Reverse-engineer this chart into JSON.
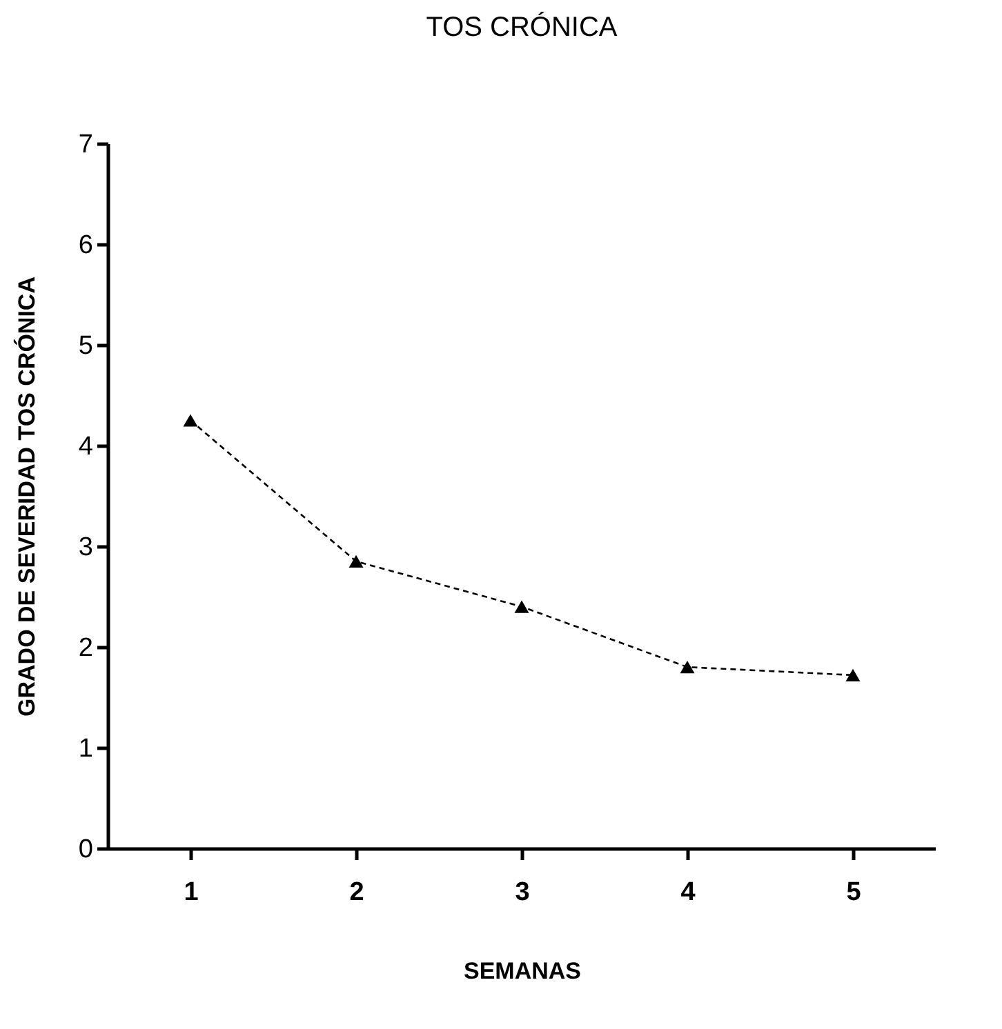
{
  "chart_data": {
    "type": "line",
    "title": "TOS CRÓNICA",
    "xlabel": "SEMANAS",
    "ylabel": "GRADO DE SEVERIDAD TOS CRÓNICA",
    "categories": [
      "1",
      "2",
      "3",
      "4",
      "5"
    ],
    "series": [
      {
        "color": "#000000",
        "values": [
          4.25,
          2.85,
          2.4,
          1.8,
          1.72
        ]
      }
    ],
    "ylim": [
      0,
      7
    ],
    "yticks": [
      0,
      1,
      2,
      3,
      4,
      5,
      6,
      7
    ],
    "grid": false,
    "legend": false,
    "marker": "triangle",
    "line_style": "dashed"
  }
}
